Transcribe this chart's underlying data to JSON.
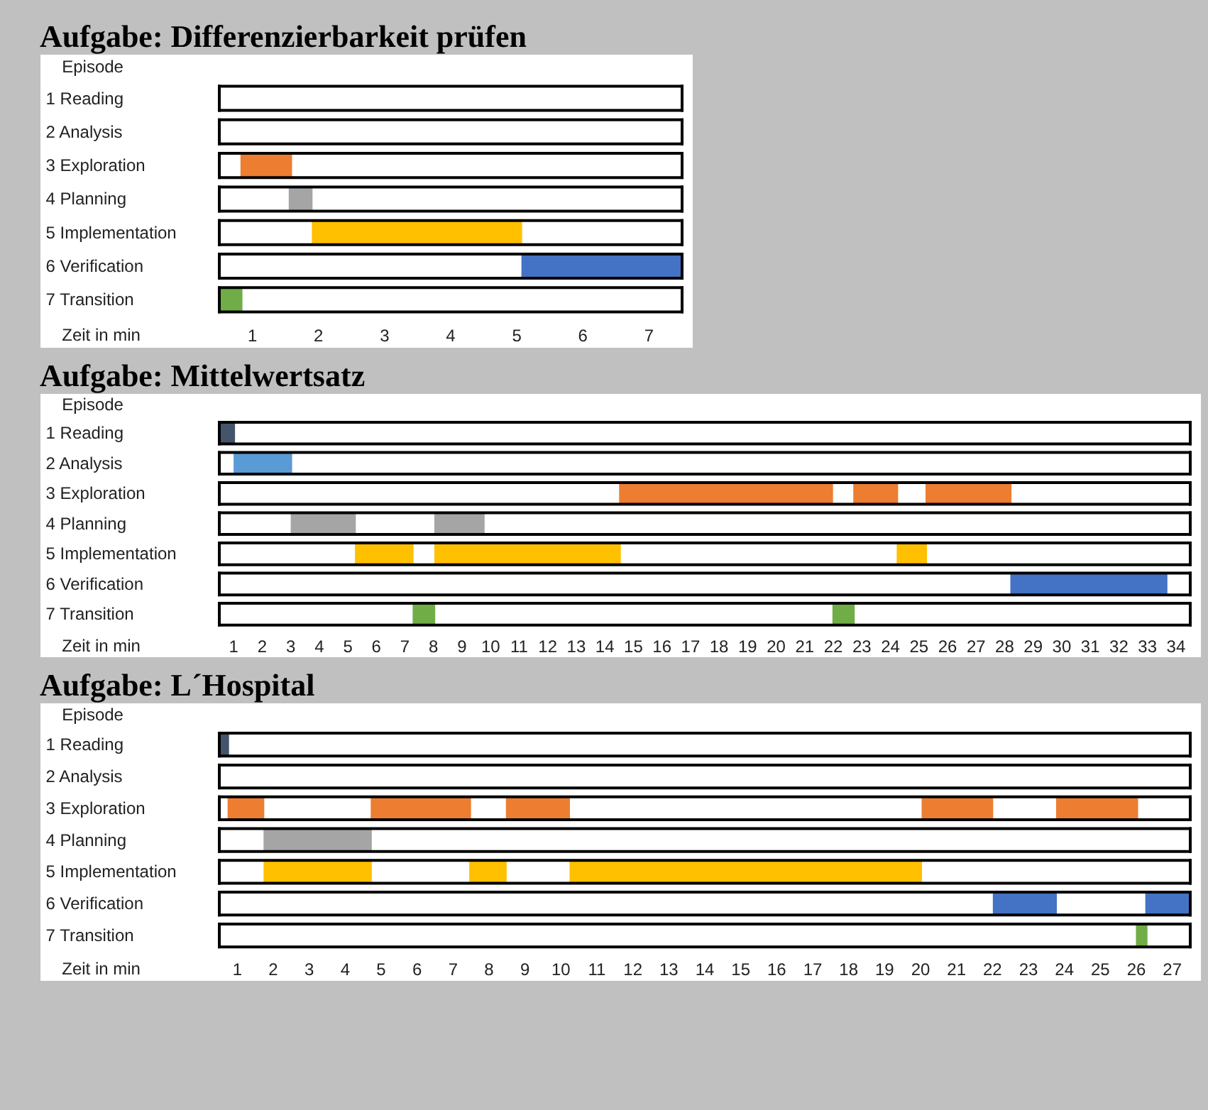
{
  "chart_data": [
    {
      "type": "bar",
      "orientation": "horizontal",
      "title": "Aufgabe: Differenzierbarkeit prüfen",
      "ylabel": "Episode",
      "xlabel": "Zeit in min",
      "categories": [
        "1 Reading",
        "2 Analysis",
        "3 Exploration",
        "4 Planning",
        "5 Implementation",
        "6 Verification",
        "7 Transition"
      ],
      "xlim": [
        0,
        7
      ],
      "xticks": [
        {
          "value": 0.5,
          "label": "1"
        },
        {
          "value": 1.5,
          "label": "2"
        },
        {
          "value": 2.5,
          "label": "3"
        },
        {
          "value": 3.5,
          "label": "4"
        },
        {
          "value": 4.5,
          "label": "5"
        },
        {
          "value": 5.5,
          "label": "6"
        },
        {
          "value": 6.5,
          "label": "7"
        }
      ],
      "series": [
        {
          "colors": [
            null,
            null,
            "#ed7d31",
            "#a5a5a5",
            "#ffc000",
            "#4472c4",
            "#70ad47"
          ],
          "base": [
            null,
            null,
            0.32,
            1.05,
            1.4,
            4.57,
            0
          ],
          "values": [
            null,
            null,
            0.78,
            0.36,
            3.18,
            2.43,
            0.35
          ]
        }
      ]
    },
    {
      "type": "bar",
      "orientation": "horizontal",
      "title": "Aufgabe: Mittelwertsatz",
      "ylabel": "Episode",
      "xlabel": "Zeit in min",
      "categories": [
        "1 Reading",
        "2 Analysis",
        "3 Exploration",
        "4 Planning",
        "5 Implementation",
        "6 Verification",
        "7 Transition"
      ],
      "xlim": [
        0,
        34
      ],
      "xticks": [
        {
          "value": 0.5,
          "label": "1"
        },
        {
          "value": 1.5,
          "label": "2"
        },
        {
          "value": 2.5,
          "label": "3"
        },
        {
          "value": 3.5,
          "label": "4"
        },
        {
          "value": 4.5,
          "label": "5"
        },
        {
          "value": 5.5,
          "label": "6"
        },
        {
          "value": 6.5,
          "label": "7"
        },
        {
          "value": 7.5,
          "label": "8"
        },
        {
          "value": 8.5,
          "label": "9"
        },
        {
          "value": 9.5,
          "label": "10"
        },
        {
          "value": 10.5,
          "label": "11"
        },
        {
          "value": 11.5,
          "label": "12"
        },
        {
          "value": 12.5,
          "label": "13"
        },
        {
          "value": 13.5,
          "label": "14"
        },
        {
          "value": 14.5,
          "label": "15"
        },
        {
          "value": 15.5,
          "label": "16"
        },
        {
          "value": 16.5,
          "label": "17"
        },
        {
          "value": 17.5,
          "label": "18"
        },
        {
          "value": 18.5,
          "label": "19"
        },
        {
          "value": 19.5,
          "label": "20"
        },
        {
          "value": 20.5,
          "label": "21"
        },
        {
          "value": 21.5,
          "label": "22"
        },
        {
          "value": 22.5,
          "label": "23"
        },
        {
          "value": 23.5,
          "label": "24"
        },
        {
          "value": 24.5,
          "label": "25"
        },
        {
          "value": 25.5,
          "label": "26"
        },
        {
          "value": 26.5,
          "label": "27"
        },
        {
          "value": 27.5,
          "label": "28"
        },
        {
          "value": 28.5,
          "label": "29"
        },
        {
          "value": 29.5,
          "label": "30"
        },
        {
          "value": 30.5,
          "label": "31"
        },
        {
          "value": 31.5,
          "label": "32"
        },
        {
          "value": 32.5,
          "label": "33"
        },
        {
          "value": 33.5,
          "label": "34"
        }
      ],
      "series": [
        {
          "colors": [
            "#44546a",
            "#5b9bd5",
            "#ed7d31",
            "#a5a5a5",
            "#ffc000",
            "#4472c4",
            "#70ad47"
          ],
          "base": [
            0,
            0.5,
            14.0,
            2.5,
            4.75,
            27.7,
            6.77
          ],
          "values": [
            0.55,
            2.05,
            7.49,
            2.28,
            2.05,
            5.5,
            0.79
          ]
        },
        {
          "colors": [
            null,
            null,
            "#ed7d31",
            "#a5a5a5",
            "#ffc000",
            null,
            "#70ad47"
          ],
          "base": [
            null,
            null,
            22.2,
            7.53,
            7.53,
            null,
            21.47
          ],
          "values": [
            null,
            null,
            1.57,
            1.76,
            6.53,
            null,
            0.78
          ]
        },
        {
          "colors": [
            null,
            null,
            "#ed7d31",
            null,
            "#ffc000",
            null,
            null
          ],
          "base": [
            null,
            null,
            24.73,
            null,
            23.72,
            null,
            null
          ],
          "values": [
            null,
            null,
            3.01,
            null,
            1.06,
            null,
            null
          ]
        }
      ]
    },
    {
      "type": "bar",
      "orientation": "horizontal",
      "title": "Aufgabe: L´Hospital",
      "ylabel": "Episode",
      "xlabel": "Zeit in min",
      "categories": [
        "1 Reading",
        "2 Analysis",
        "3 Exploration",
        "4 Planning",
        "5 Implementation",
        "6 Verification",
        "7 Transition"
      ],
      "xlim": [
        0,
        27
      ],
      "xticks": [
        {
          "value": 0.5,
          "label": "1"
        },
        {
          "value": 1.5,
          "label": "2"
        },
        {
          "value": 2.5,
          "label": "3"
        },
        {
          "value": 3.5,
          "label": "4"
        },
        {
          "value": 4.5,
          "label": "5"
        },
        {
          "value": 5.5,
          "label": "6"
        },
        {
          "value": 6.5,
          "label": "7"
        },
        {
          "value": 7.5,
          "label": "8"
        },
        {
          "value": 8.5,
          "label": "9"
        },
        {
          "value": 9.5,
          "label": "10"
        },
        {
          "value": 10.5,
          "label": "11"
        },
        {
          "value": 11.5,
          "label": "12"
        },
        {
          "value": 12.5,
          "label": "13"
        },
        {
          "value": 13.5,
          "label": "14"
        },
        {
          "value": 14.5,
          "label": "15"
        },
        {
          "value": 15.5,
          "label": "16"
        },
        {
          "value": 16.5,
          "label": "17"
        },
        {
          "value": 17.5,
          "label": "18"
        },
        {
          "value": 18.5,
          "label": "19"
        },
        {
          "value": 19.5,
          "label": "20"
        },
        {
          "value": 20.5,
          "label": "21"
        },
        {
          "value": 21.5,
          "label": "22"
        },
        {
          "value": 22.5,
          "label": "23"
        },
        {
          "value": 23.5,
          "label": "24"
        },
        {
          "value": 24.5,
          "label": "25"
        },
        {
          "value": 25.5,
          "label": "26"
        },
        {
          "value": 26.5,
          "label": "27"
        }
      ],
      "series": [
        {
          "colors": [
            "#44546a",
            null,
            "#ed7d31",
            "#a5a5a5",
            "#ffc000",
            "#4472c4",
            "#70ad47"
          ],
          "base": [
            0,
            null,
            0.23,
            1.23,
            1.23,
            21.51,
            25.49
          ],
          "values": [
            0.27,
            null,
            1.02,
            3.01,
            3.01,
            1.78,
            0.32
          ]
        },
        {
          "colors": [
            null,
            null,
            "#ed7d31",
            null,
            "#ffc000",
            "#4472c4",
            null
          ],
          "base": [
            null,
            null,
            4.21,
            null,
            6.95,
            25.75,
            null
          ],
          "values": [
            null,
            null,
            2.79,
            null,
            1.04,
            1.25,
            null
          ]
        },
        {
          "colors": [
            null,
            null,
            "#ed7d31",
            null,
            "#ffc000",
            null,
            null
          ],
          "base": [
            null,
            null,
            7.97,
            null,
            9.74,
            null,
            null
          ],
          "values": [
            null,
            null,
            1.78,
            null,
            9.8,
            null,
            null
          ]
        },
        {
          "colors": [
            null,
            null,
            "#ed7d31",
            null,
            null,
            null,
            null
          ],
          "base": [
            null,
            null,
            19.53,
            null,
            null,
            null,
            null
          ],
          "values": [
            null,
            null,
            1.99,
            null,
            null,
            null,
            null
          ]
        },
        {
          "colors": [
            null,
            null,
            "#ed7d31",
            null,
            null,
            null,
            null
          ],
          "base": [
            null,
            null,
            23.27,
            null,
            null,
            null,
            null
          ],
          "values": [
            null,
            null,
            2.28,
            null,
            null,
            null,
            null
          ]
        }
      ]
    }
  ]
}
